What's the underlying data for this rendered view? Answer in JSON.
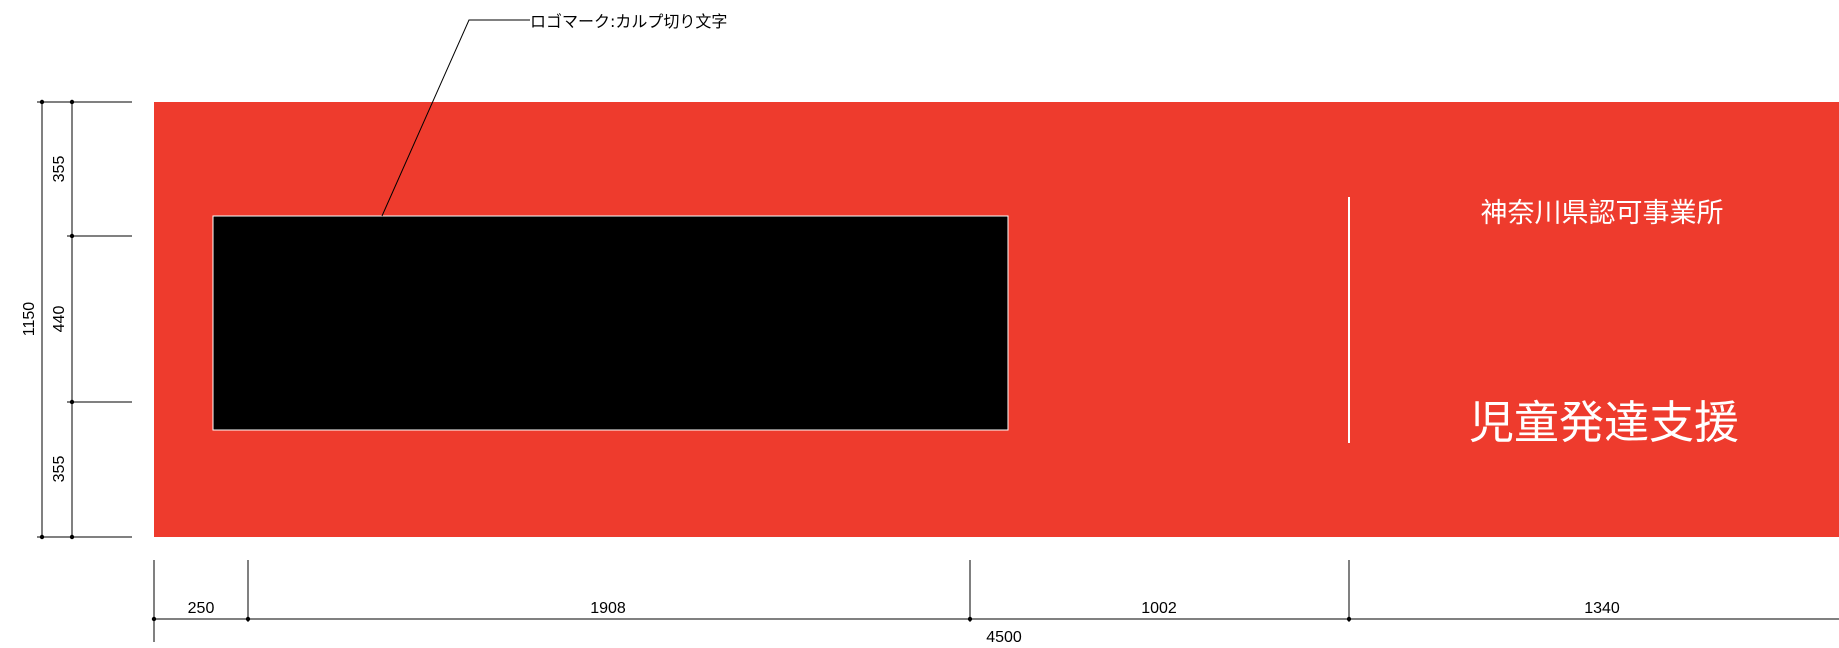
{
  "callout": {
    "label": "ロゴマーク:カルプ切り文字"
  },
  "sign": {
    "subtitle": "神奈川県認可事業所",
    "title": "児童発達支援",
    "colors": {
      "panel": "#ee3b2d",
      "logo_block": "#000000",
      "text": "#ffffff"
    }
  },
  "dimensions": {
    "vertical_segments": [
      "355",
      "440",
      "355"
    ],
    "vertical_total": "1150",
    "horizontal_segments": [
      "250",
      "1908",
      "1002",
      "1340"
    ],
    "horizontal_total": "4500"
  }
}
